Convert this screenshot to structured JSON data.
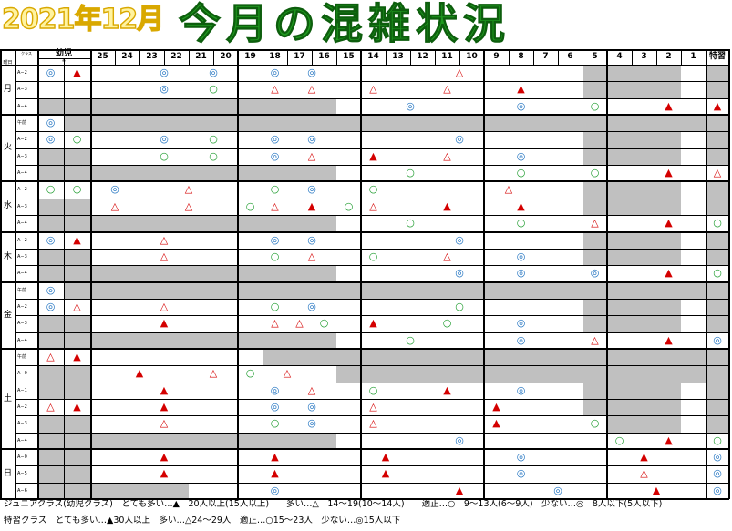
{
  "title": {
    "year": "2021年12月",
    "main": "今月の混雑状況"
  },
  "header": {
    "youji": "幼児",
    "sub_label": "クラス",
    "sub_small": "※",
    "col_head": "曜日",
    "tokushu": "特習",
    "date_cols": [
      "25",
      "24",
      "23",
      "22",
      "21",
      "20",
      "19",
      "18",
      "17",
      "16",
      "15",
      "14",
      "13",
      "12",
      "11",
      "10",
      "9",
      "8",
      "7",
      "6",
      "5",
      "4",
      "3",
      "2",
      "1"
    ]
  },
  "legend": {
    "junior": "ジュニアクラス(幼児クラス)　とても多い…▲　20人以上(15人以上)　　多い…△　14〜19(10〜14人)　　適正…○　9〜13人(6〜9人)　少ない…◎　8人以下(5人以下)",
    "tokushu": "特習クラス　とても多い…▲30人以上　多い…△24〜29人　適正…○15〜23人　少ない…◎15人以下"
  },
  "days": [
    {
      "label": "月",
      "rows": [
        {
          "l": "A−2",
          "y": [
            "◎",
            "▲"
          ]
        },
        {
          "l": "A−3"
        },
        {
          "l": "A−4"
        }
      ]
    },
    {
      "label": "火",
      "rows": [
        {
          "l": "午前",
          "y": [
            "◎"
          ]
        },
        {
          "l": "A−2",
          "y": [
            "◎",
            "○"
          ]
        },
        {
          "l": "A−3"
        },
        {
          "l": "A−4"
        }
      ]
    },
    {
      "label": "水",
      "rows": [
        {
          "l": "A−2",
          "y": [
            "○",
            "○"
          ]
        },
        {
          "l": "A−3"
        },
        {
          "l": "A−4"
        }
      ]
    },
    {
      "label": "木",
      "rows": [
        {
          "l": "A−2",
          "y": [
            "◎",
            "▲"
          ]
        },
        {
          "l": "A−3"
        },
        {
          "l": "A−4"
        }
      ]
    },
    {
      "label": "金",
      "rows": [
        {
          "l": "午前",
          "y": [
            "◎"
          ]
        },
        {
          "l": "A−2",
          "y": [
            "◎",
            "△"
          ]
        },
        {
          "l": "A−3"
        },
        {
          "l": "A−4"
        }
      ]
    },
    {
      "label": "土",
      "rows": [
        {
          "l": "午前",
          "y": [
            "△",
            "▲"
          ]
        },
        {
          "l": "A−0"
        },
        {
          "l": "A−1"
        },
        {
          "l": "A−2",
          "y": [
            "△",
            "▲"
          ]
        },
        {
          "l": "A−3"
        },
        {
          "l": "A−4"
        }
      ]
    },
    {
      "label": "日",
      "rows": [
        {
          "l": "A−0"
        },
        {
          "l": "A−5"
        },
        {
          "l": "A−6"
        }
      ]
    }
  ],
  "marks": {
    "mon_a2": [
      {
        "c": "◎",
        "col": "22.5"
      },
      {
        "c": "◎",
        "col": "20.5"
      },
      {
        "c": "◎",
        "col": "18"
      },
      {
        "c": "◎",
        "col": "16.5"
      },
      {
        "c": "△",
        "col": "10.5"
      }
    ],
    "mon_a3": [
      {
        "c": "◎",
        "col": "22.5"
      },
      {
        "c": "○",
        "col": "20.5"
      },
      {
        "c": "△",
        "col": "18"
      },
      {
        "c": "△",
        "col": "16.5"
      },
      {
        "c": "△",
        "col": "14"
      },
      {
        "c": "△",
        "col": "11"
      },
      {
        "c": "▲",
        "col": "8"
      }
    ],
    "mon_a4": [
      {
        "c": "◎",
        "col": "12.5"
      },
      {
        "c": "◎",
        "col": "8"
      },
      {
        "c": "○",
        "col": "5"
      },
      {
        "c": "▲",
        "col": "2"
      },
      {
        "c": "▲",
        "col": "tk"
      }
    ],
    "tue_a2": [
      {
        "c": "◎",
        "col": "22.5"
      },
      {
        "c": "○",
        "col": "20.5"
      },
      {
        "c": "◎",
        "col": "18"
      },
      {
        "c": "◎",
        "col": "16.5"
      },
      {
        "c": "◎",
        "col": "10.5"
      }
    ],
    "tue_a3": [
      {
        "c": "○",
        "col": "22.5"
      },
      {
        "c": "○",
        "col": "20.5"
      },
      {
        "c": "◎",
        "col": "18"
      },
      {
        "c": "△",
        "col": "16.5"
      },
      {
        "c": "▲",
        "col": "14"
      },
      {
        "c": "△",
        "col": "11"
      },
      {
        "c": "◎",
        "col": "8"
      }
    ],
    "tue_a4": [
      {
        "c": "○",
        "col": "12.5"
      },
      {
        "c": "○",
        "col": "8"
      },
      {
        "c": "○",
        "col": "5"
      },
      {
        "c": "▲",
        "col": "2"
      },
      {
        "c": "△",
        "col": "tk"
      }
    ],
    "wed_a2": [
      {
        "c": "◎",
        "col": "24.5"
      },
      {
        "c": "△",
        "col": "21.5"
      },
      {
        "c": "○",
        "col": "18"
      },
      {
        "c": "◎",
        "col": "16.5"
      },
      {
        "c": "○",
        "col": "14"
      },
      {
        "c": "△",
        "col": "8.5"
      }
    ],
    "wed_a3": [
      {
        "c": "△",
        "col": "24.5"
      },
      {
        "c": "△",
        "col": "21.5"
      },
      {
        "c": "○",
        "col": "19"
      },
      {
        "c": "△",
        "col": "18"
      },
      {
        "c": "▲",
        "col": "16.5"
      },
      {
        "c": "○",
        "col": "15"
      },
      {
        "c": "△",
        "col": "14"
      },
      {
        "c": "▲",
        "col": "11"
      },
      {
        "c": "▲",
        "col": "8"
      }
    ],
    "wed_a4": [
      {
        "c": "○",
        "col": "12.5"
      },
      {
        "c": "○",
        "col": "8"
      },
      {
        "c": "△",
        "col": "5"
      },
      {
        "c": "▲",
        "col": "2"
      },
      {
        "c": "○",
        "col": "tk"
      }
    ],
    "thu_a2": [
      {
        "c": "△",
        "col": "22.5"
      },
      {
        "c": "◎",
        "col": "18"
      },
      {
        "c": "◎",
        "col": "16.5"
      },
      {
        "c": "◎",
        "col": "10.5"
      }
    ],
    "thu_a3": [
      {
        "c": "△",
        "col": "22.5"
      },
      {
        "c": "○",
        "col": "18"
      },
      {
        "c": "△",
        "col": "16.5"
      },
      {
        "c": "○",
        "col": "14"
      },
      {
        "c": "△",
        "col": "11"
      },
      {
        "c": "◎",
        "col": "8"
      }
    ],
    "thu_a4": [
      {
        "c": "◎",
        "col": "10.5"
      },
      {
        "c": "◎",
        "col": "8"
      },
      {
        "c": "◎",
        "col": "5"
      },
      {
        "c": "▲",
        "col": "2"
      },
      {
        "c": "○",
        "col": "tk"
      }
    ],
    "fri_a2": [
      {
        "c": "△",
        "col": "22.5"
      },
      {
        "c": "○",
        "col": "18"
      },
      {
        "c": "◎",
        "col": "16.5"
      },
      {
        "c": "○",
        "col": "10.5"
      }
    ],
    "fri_a3": [
      {
        "c": "▲",
        "col": "22.5"
      },
      {
        "c": "△",
        "col": "18"
      },
      {
        "c": "△",
        "col": "17"
      },
      {
        "c": "○",
        "col": "16"
      },
      {
        "c": "▲",
        "col": "14"
      },
      {
        "c": "○",
        "col": "11"
      },
      {
        "c": "◎",
        "col": "8"
      }
    ],
    "fri_a4": [
      {
        "c": "○",
        "col": "12.5"
      },
      {
        "c": "◎",
        "col": "8"
      },
      {
        "c": "△",
        "col": "5"
      },
      {
        "c": "▲",
        "col": "2"
      },
      {
        "c": "◎",
        "col": "tk"
      }
    ],
    "sat_a0": [
      {
        "c": "▲",
        "col": "23.5"
      },
      {
        "c": "△",
        "col": "20.5"
      },
      {
        "c": "○",
        "col": "19"
      },
      {
        "c": "△",
        "col": "17.5"
      }
    ],
    "sat_a1": [
      {
        "c": "▲",
        "col": "22.5"
      },
      {
        "c": "◎",
        "col": "18"
      },
      {
        "c": "△",
        "col": "16.5"
      },
      {
        "c": "○",
        "col": "14"
      },
      {
        "c": "▲",
        "col": "11"
      },
      {
        "c": "◎",
        "col": "8"
      }
    ],
    "sat_a2": [
      {
        "c": "▲",
        "col": "22.5"
      },
      {
        "c": "◎",
        "col": "18"
      },
      {
        "c": "◎",
        "col": "16.5"
      },
      {
        "c": "△",
        "col": "14"
      },
      {
        "c": "▲",
        "col": "9"
      }
    ],
    "sat_a3": [
      {
        "c": "△",
        "col": "22.5"
      },
      {
        "c": "○",
        "col": "18"
      },
      {
        "c": "◎",
        "col": "16.5"
      },
      {
        "c": "△",
        "col": "14"
      },
      {
        "c": "▲",
        "col": "9"
      },
      {
        "c": "○",
        "col": "5"
      }
    ],
    "sat_a4": [
      {
        "c": "◎",
        "col": "10.5"
      },
      {
        "c": "○",
        "col": "4"
      },
      {
        "c": "▲",
        "col": "2"
      },
      {
        "c": "○",
        "col": "tk"
      }
    ],
    "sun_a0": [
      {
        "c": "▲",
        "col": "22.5"
      },
      {
        "c": "▲",
        "col": "18"
      },
      {
        "c": "▲",
        "col": "13.5"
      },
      {
        "c": "◎",
        "col": "8"
      },
      {
        "c": "▲",
        "col": "3"
      },
      {
        "c": "◎",
        "col": "tk"
      }
    ],
    "sun_a5": [
      {
        "c": "▲",
        "col": "22.5"
      },
      {
        "c": "▲",
        "col": "18"
      },
      {
        "c": "▲",
        "col": "13.5"
      },
      {
        "c": "◎",
        "col": "8"
      },
      {
        "c": "△",
        "col": "3"
      },
      {
        "c": "◎",
        "col": "tk"
      }
    ],
    "sun_a6": [
      {
        "c": "◎",
        "col": "18"
      },
      {
        "c": "▲",
        "col": "10.5"
      },
      {
        "c": "◎",
        "col": "6.5"
      },
      {
        "c": "▲",
        "col": "2.5"
      },
      {
        "c": "◎",
        "col": "tk"
      }
    ]
  },
  "colors": {
    "filled_triangle": "#d40000",
    "open_triangle": "#d40000",
    "circle": "#1a9a2a",
    "double_circle": "#1a6fbf",
    "gray": "#c0c0c0",
    "title_green": "#1f9a1f",
    "title_yellow": "#fff3a0"
  }
}
